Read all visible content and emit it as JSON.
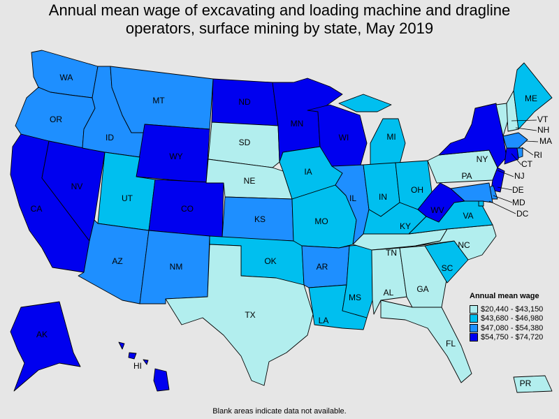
{
  "title": {
    "line1": "Annual mean wage of excavating and loading machine and dragline",
    "line2": "operators, surface mining by state, May 2019"
  },
  "legend": {
    "title": "Annual mean wage",
    "bins": [
      {
        "label": "$20,440 - $43,150",
        "color": "#b2eeee"
      },
      {
        "label": "$43,680 - $46,980",
        "color": "#00bfef"
      },
      {
        "label": "$47,080 - $54,380",
        "color": "#1e8fff"
      },
      {
        "label": "$54,750 - $74,720",
        "color": "#0000ef"
      }
    ]
  },
  "footnote": "Blank areas indicate data not available.",
  "states": {
    "WA": 2,
    "OR": 2,
    "CA": 3,
    "NV": 3,
    "ID": 2,
    "MT": 2,
    "WY": 3,
    "UT": 1,
    "CO": 3,
    "AZ": 2,
    "NM": 2,
    "ND": 3,
    "SD": 0,
    "NE": 0,
    "KS": 2,
    "OK": 1,
    "TX": 0,
    "MN": 3,
    "IA": 1,
    "MO": 1,
    "AR": 2,
    "LA": 1,
    "WI": 3,
    "IL": 2,
    "MS": 1,
    "MI": 1,
    "IN": 1,
    "OH": 1,
    "KY": 1,
    "TN": 0,
    "AL": 0,
    "GA": 0,
    "FL": 0,
    "SC": 1,
    "NC": 0,
    "VA": 1,
    "WV": 3,
    "PA": 0,
    "NY": 3,
    "VT": 0,
    "NH": 0,
    "ME": 1,
    "MA": 2,
    "CT": 3,
    "RI": 2,
    "NJ": 3,
    "DE": 2,
    "MD": 2,
    "DC": 1,
    "AK": 3,
    "HI": 3,
    "PR": 0
  },
  "labels": {
    "WA": "WA",
    "OR": "OR",
    "CA": "CA",
    "NV": "NV",
    "ID": "ID",
    "MT": "MT",
    "WY": "WY",
    "UT": "UT",
    "CO": "CO",
    "AZ": "AZ",
    "NM": "NM",
    "ND": "ND",
    "SD": "SD",
    "NE": "NE",
    "KS": "KS",
    "OK": "OK",
    "TX": "TX",
    "MN": "MN",
    "IA": "IA",
    "MO": "MO",
    "AR": "AR",
    "LA": "LA",
    "WI": "WI",
    "IL": "IL",
    "MS": "MS",
    "MI": "MI",
    "IN": "IN",
    "OH": "OH",
    "KY": "KY",
    "TN": "TN",
    "AL": "AL",
    "GA": "GA",
    "FL": "FL",
    "SC": "SC",
    "NC": "NC",
    "VA": "VA",
    "WV": "WV",
    "PA": "PA",
    "NY": "NY",
    "VT": "VT",
    "NH": "NH",
    "ME": "ME",
    "MA": "MA",
    "CT": "CT",
    "RI": "RI",
    "NJ": "NJ",
    "DE": "DE",
    "MD": "MD",
    "DC": "DC",
    "AK": "AK",
    "HI": "HI",
    "PR": "PR"
  }
}
